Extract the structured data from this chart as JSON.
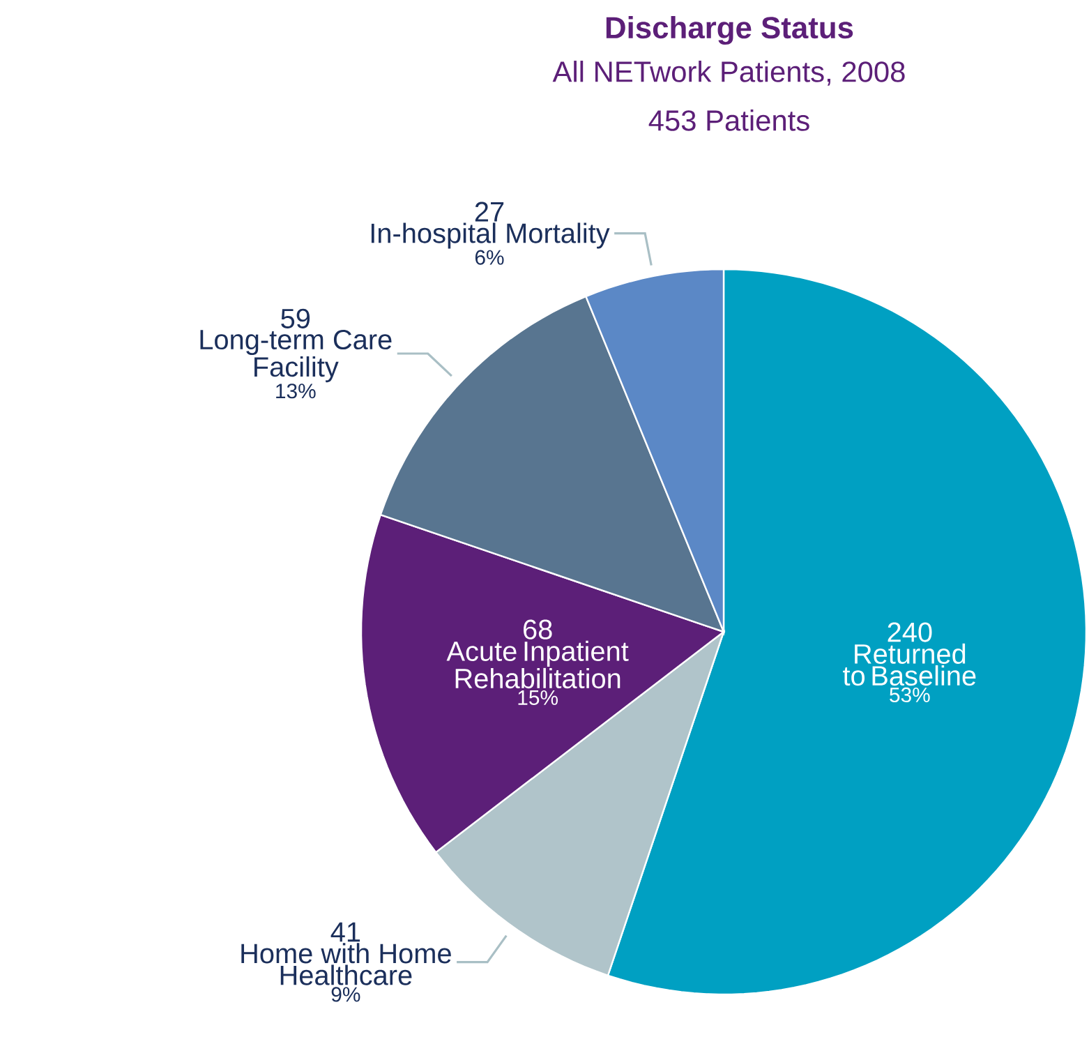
{
  "chart_data": {
    "type": "pie",
    "title": "Discharge Status",
    "subtitle": "All NETwork Patients, 2008",
    "annotations": [
      "453 Patients",
      {
        "text": "53%",
        "x": "Returned to Baseline"
      },
      {
        "text": "9%",
        "x": "Home with Home Healthcare"
      },
      {
        "text": "15%",
        "x": "Acute Inpatient Rehabilitation"
      },
      {
        "text": "13%",
        "x": "Long-term Care Facility"
      },
      {
        "text": "6%",
        "x": "In-hospital Mortality"
      }
    ],
    "categories": [
      "Returned to Baseline",
      "Home with Home Healthcare",
      "Acute Inpatient Rehabilitation",
      "Long-term Care Facility",
      "In-hospital Mortality"
    ],
    "values": [
      240,
      41,
      68,
      59,
      27
    ],
    "value_labels": [
      "240",
      "41",
      "68",
      "59",
      "27"
    ],
    "colors": [
      "#00a0c2",
      "#b0c4ca",
      "#5c1f78",
      "#587590",
      "#5b88c6"
    ]
  }
}
